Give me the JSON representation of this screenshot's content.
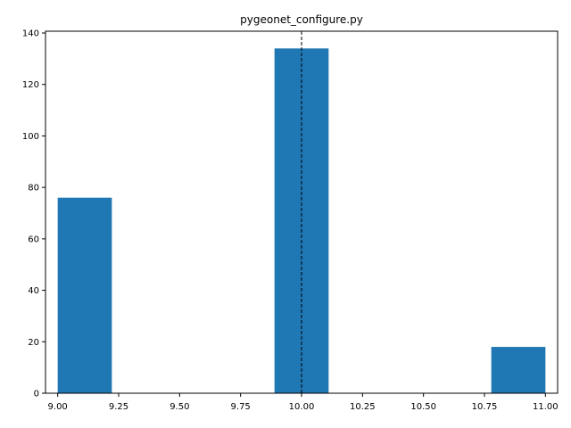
{
  "chart_data": {
    "type": "bar",
    "title": "pygeonet_configure.py",
    "xlabel": "",
    "ylabel": "",
    "xlim": [
      8.95,
      11.05
    ],
    "ylim": [
      0,
      140.7
    ],
    "x_ticks": [
      "9.00",
      "9.25",
      "9.50",
      "9.75",
      "10.00",
      "10.25",
      "10.50",
      "10.75",
      "11.00"
    ],
    "x_tick_values": [
      9.0,
      9.25,
      9.5,
      9.75,
      10.0,
      10.25,
      10.5,
      10.75,
      11.0
    ],
    "y_ticks": [
      "0",
      "20",
      "40",
      "60",
      "80",
      "100",
      "120",
      "140"
    ],
    "y_tick_values": [
      0,
      20,
      40,
      60,
      80,
      100,
      120,
      140
    ],
    "bins": [
      {
        "start": 9.0,
        "end": 9.222,
        "value": 76
      },
      {
        "start": 9.889,
        "end": 10.111,
        "value": 134
      },
      {
        "start": 10.778,
        "end": 11.0,
        "value": 18
      }
    ],
    "vline": {
      "x": 10.0,
      "style": "dashed"
    },
    "bar_color": "#1f77b4",
    "line_color": "#000000",
    "grid": false,
    "legend": "none"
  }
}
